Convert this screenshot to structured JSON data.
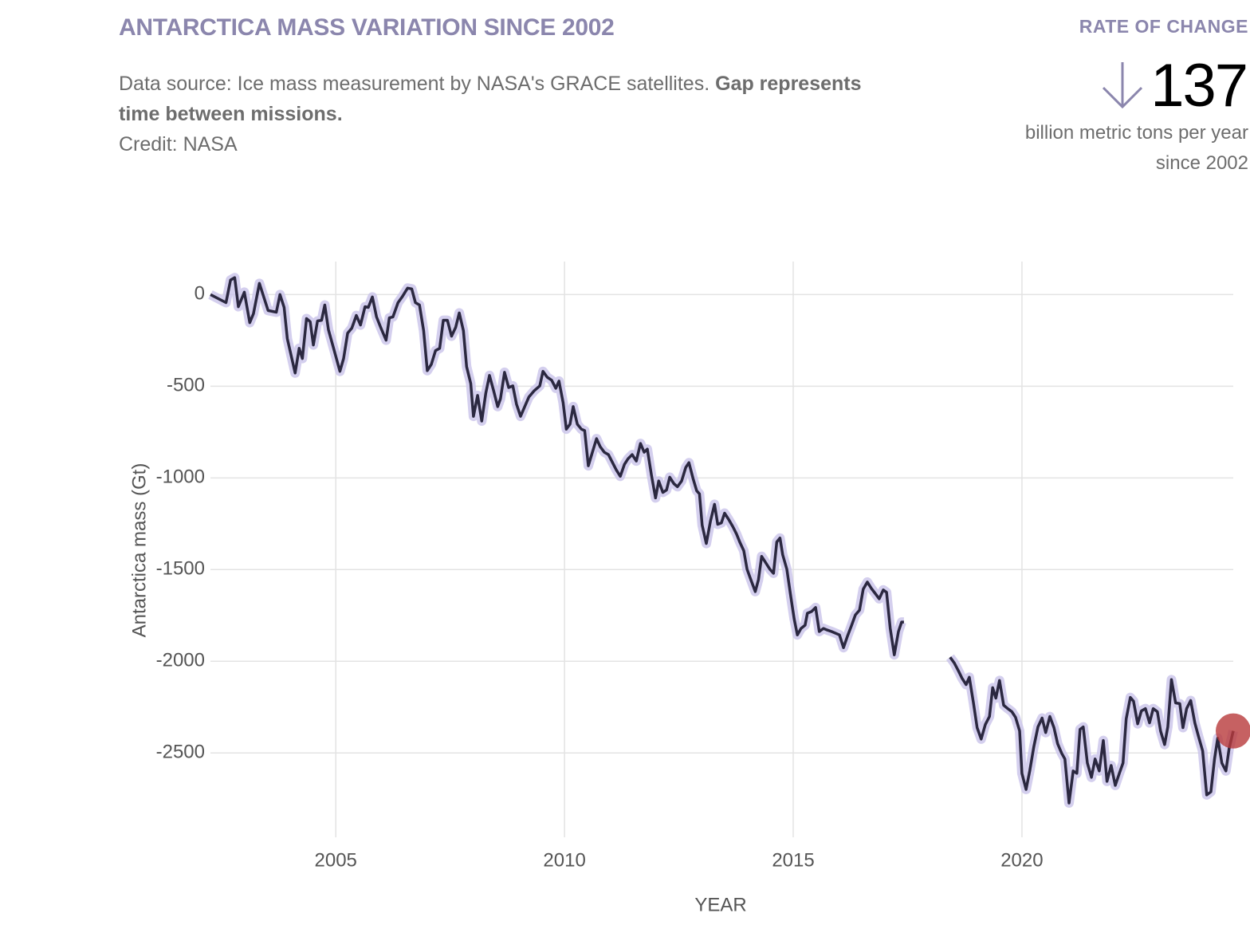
{
  "header": {
    "title": "ANTARCTICA MASS VARIATION SINCE 2002",
    "source": "Data source: Ice mass measurement by NASA's GRACE satellites.",
    "source_bold": "Gap represents time between missions.",
    "credit": "Credit: NASA"
  },
  "rate": {
    "label": "RATE OF CHANGE",
    "value": 137,
    "unit": "billion metric tons per year since 2002"
  },
  "chart_data": {
    "type": "line",
    "x_label": "YEAR",
    "y_label": "Antarctica mass (Gt)",
    "color": "#2b2840",
    "band_color": "#c9c3ea",
    "highlight_color": "#b8393b",
    "highlight_last": true,
    "grid": true,
    "xlim": [
      2002.26,
      2024.62
    ],
    "xticks": [
      2005,
      2010,
      2015,
      2020
    ],
    "ylim": [
      -2960,
      180
    ],
    "yticks": [
      0,
      -500,
      -1000,
      -1500,
      -2000,
      -2500
    ],
    "x": [
      2002.26,
      2002.6,
      2002.7,
      2002.79,
      2002.87,
      2003.0,
      2003.12,
      2003.2,
      2003.33,
      2003.52,
      2003.7,
      2003.78,
      2003.87,
      2003.94,
      2004.11,
      2004.2,
      2004.27,
      2004.36,
      2004.44,
      2004.51,
      2004.6,
      2004.69,
      2004.76,
      2004.84,
      2004.98,
      2005.09,
      2005.17,
      2005.26,
      2005.35,
      2005.45,
      2005.54,
      2005.64,
      2005.71,
      2005.8,
      2005.89,
      2005.98,
      2006.1,
      2006.17,
      2006.25,
      2006.36,
      2006.45,
      2006.57,
      2006.66,
      2006.74,
      2006.83,
      2006.92,
      2007.0,
      2007.09,
      2007.18,
      2007.27,
      2007.35,
      2007.44,
      2007.53,
      2007.62,
      2007.7,
      2007.79,
      2007.86,
      2007.95,
      2008.01,
      2008.1,
      2008.19,
      2008.28,
      2008.36,
      2008.45,
      2008.54,
      2008.6,
      2008.69,
      2008.78,
      2008.87,
      2008.95,
      2009.04,
      2009.13,
      2009.22,
      2009.34,
      2009.46,
      2009.53,
      2009.62,
      2009.72,
      2009.81,
      2009.88,
      2009.97,
      2010.04,
      2010.12,
      2010.19,
      2010.28,
      2010.37,
      2010.44,
      2010.52,
      2010.61,
      2010.7,
      2010.78,
      2010.87,
      2010.96,
      2011.05,
      2011.13,
      2011.22,
      2011.31,
      2011.39,
      2011.48,
      2011.57,
      2011.66,
      2011.74,
      2011.81,
      2011.9,
      2011.99,
      2012.06,
      2012.15,
      2012.23,
      2012.3,
      2012.39,
      2012.47,
      2012.56,
      2012.65,
      2012.72,
      2012.81,
      2012.89,
      2012.95,
      2013.01,
      2013.1,
      2013.19,
      2013.28,
      2013.35,
      2013.43,
      2013.5,
      2013.59,
      2013.68,
      2013.76,
      2013.83,
      2013.92,
      2013.99,
      2014.08,
      2014.17,
      2014.24,
      2014.31,
      2014.4,
      2014.49,
      2014.57,
      2014.64,
      2014.71,
      2014.77,
      2014.86,
      2014.95,
      2015.02,
      2015.09,
      2015.17,
      2015.26,
      2015.31,
      2015.4,
      2015.49,
      2015.57,
      2015.66,
      2015.75,
      2015.84,
      2016.01,
      2016.1,
      2016.19,
      2016.27,
      2016.36,
      2016.45,
      2016.53,
      2016.62,
      2016.71,
      2016.79,
      2016.88,
      2016.97,
      2017.04,
      2017.12,
      2017.21,
      2017.3,
      2017.37,
      2017.42,
      2017.9,
      2018.43,
      2018.52,
      2018.61,
      2018.69,
      2018.78,
      2018.85,
      2018.94,
      2019.02,
      2019.11,
      2019.2,
      2019.29,
      2019.36,
      2019.43,
      2019.51,
      2019.6,
      2019.69,
      2019.78,
      2019.86,
      2019.95,
      2020.0,
      2020.09,
      2020.17,
      2020.26,
      2020.35,
      2020.44,
      2020.52,
      2020.61,
      2020.7,
      2020.78,
      2020.87,
      2020.94,
      2021.03,
      2021.12,
      2021.2,
      2021.27,
      2021.34,
      2021.43,
      2021.52,
      2021.6,
      2021.69,
      2021.78,
      2021.86,
      2021.95,
      2022.04,
      2022.13,
      2022.21,
      2022.28,
      2022.37,
      2022.44,
      2022.53,
      2022.61,
      2022.7,
      2022.79,
      2022.87,
      2022.96,
      2023.03,
      2023.12,
      2023.19,
      2023.27,
      2023.36,
      2023.45,
      2023.52,
      2023.6,
      2023.69,
      2023.78,
      2023.86,
      2023.95,
      2024.04,
      2024.13,
      2024.21,
      2024.28,
      2024.37,
      2024.46,
      2024.53,
      2024.62
    ],
    "values": [
      0,
      -44,
      79,
      92,
      -66,
      13,
      -153,
      -105,
      61,
      -87,
      -96,
      0,
      -70,
      -240,
      -428,
      -293,
      -349,
      -131,
      -148,
      -275,
      -144,
      -140,
      -57,
      -192,
      -319,
      -419,
      -349,
      -210,
      -183,
      -114,
      -166,
      -66,
      -70,
      -13,
      -122,
      -179,
      -249,
      -127,
      -122,
      -44,
      -13,
      35,
      31,
      -44,
      -57,
      -197,
      -415,
      -380,
      -306,
      -293,
      -140,
      -140,
      -227,
      -179,
      -100,
      -197,
      -393,
      -485,
      -664,
      -550,
      -690,
      -537,
      -441,
      -524,
      -611,
      -568,
      -424,
      -507,
      -498,
      -598,
      -664,
      -611,
      -559,
      -524,
      -498,
      -419,
      -450,
      -467,
      -511,
      -472,
      -590,
      -734,
      -707,
      -611,
      -707,
      -734,
      -742,
      -934,
      -860,
      -786,
      -830,
      -860,
      -873,
      -917,
      -956,
      -991,
      -926,
      -895,
      -873,
      -908,
      -812,
      -860,
      -843,
      -983,
      -1109,
      -1017,
      -1079,
      -1066,
      -996,
      -1031,
      -1048,
      -1017,
      -943,
      -917,
      -1004,
      -1070,
      -1087,
      -1258,
      -1358,
      -1236,
      -1144,
      -1253,
      -1245,
      -1192,
      -1227,
      -1266,
      -1306,
      -1349,
      -1397,
      -1498,
      -1559,
      -1620,
      -1555,
      -1428,
      -1463,
      -1498,
      -1520,
      -1349,
      -1328,
      -1419,
      -1498,
      -1651,
      -1769,
      -1856,
      -1821,
      -1803,
      -1738,
      -1729,
      -1707,
      -1838,
      -1821,
      -1830,
      -1838,
      -1856,
      -1926,
      -1860,
      -1808,
      -1747,
      -1721,
      -1607,
      -1568,
      -1603,
      -1629,
      -1659,
      -1611,
      -1624,
      -1821,
      -1965,
      -1838,
      -1786,
      -1786,
      null,
      -1978,
      -2009,
      -2052,
      -2092,
      -2127,
      -2087,
      -2227,
      -2362,
      -2424,
      -2345,
      -2301,
      -2144,
      -2201,
      -2105,
      -2240,
      -2258,
      -2275,
      -2306,
      -2380,
      -2611,
      -2699,
      -2598,
      -2467,
      -2358,
      -2310,
      -2389,
      -2301,
      -2362,
      -2450,
      -2502,
      -2533,
      -2773,
      -2598,
      -2611,
      -2371,
      -2358,
      -2555,
      -2633,
      -2533,
      -2598,
      -2432,
      -2655,
      -2568,
      -2677,
      -2611,
      -2555,
      -2314,
      -2197,
      -2218,
      -2341,
      -2271,
      -2258,
      -2336,
      -2258,
      -2275,
      -2380,
      -2454,
      -2358,
      -2100,
      -2227,
      -2231,
      -2362,
      -2258,
      -2214,
      -2336,
      -2410,
      -2489,
      -2729,
      -2712,
      -2533,
      -2419,
      -2555,
      -2598,
      -2476,
      -2380
    ]
  }
}
